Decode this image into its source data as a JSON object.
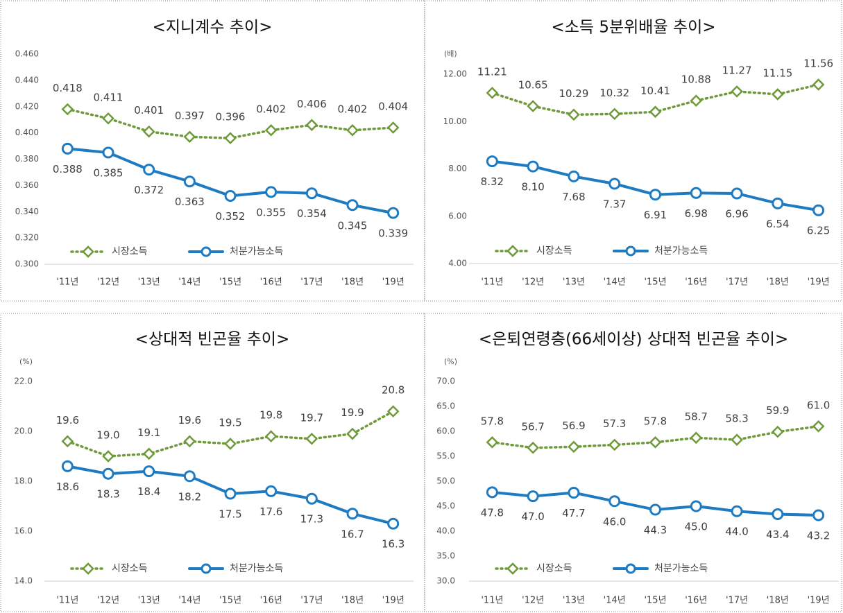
{
  "chart_data": [
    {
      "type": "line",
      "title": "<지니계수 추이>",
      "categories": [
        "'11년",
        "'12년",
        "'13년",
        "'14년",
        "'15년",
        "'16년",
        "'17년",
        "'18년",
        "'19년"
      ],
      "ylim": [
        0.3,
        0.46
      ],
      "yticks": [
        {
          "value": 0.3,
          "label": "0.300"
        },
        {
          "value": 0.32,
          "label": "0.320"
        },
        {
          "value": 0.34,
          "label": "0.340"
        },
        {
          "value": 0.36,
          "label": "0.360"
        },
        {
          "value": 0.38,
          "label": "0.380"
        },
        {
          "value": 0.4,
          "label": "0.400"
        },
        {
          "value": 0.42,
          "label": "0.420"
        },
        {
          "value": 0.44,
          "label": "0.440"
        },
        {
          "value": 0.46,
          "label": "0.460"
        }
      ],
      "grid": false,
      "series": [
        {
          "name": "시장소득",
          "color": "#6f9a3a",
          "values": [
            0.418,
            0.411,
            0.401,
            0.397,
            0.396,
            0.402,
            0.406,
            0.402,
            0.404
          ],
          "value_labels": [
            "0.418",
            "0.411",
            "0.401",
            "0.397",
            "0.396",
            "0.402",
            "0.406",
            "0.402",
            "0.404"
          ]
        },
        {
          "name": "처분가능소득",
          "color": "#1f7bc1",
          "values": [
            0.388,
            0.385,
            0.372,
            0.363,
            0.352,
            0.355,
            0.354,
            0.345,
            0.339
          ],
          "value_labels": [
            "0.388",
            "0.385",
            "0.372",
            "0.363",
            "0.352",
            "0.355",
            "0.354",
            "0.345",
            "0.339"
          ]
        }
      ]
    },
    {
      "type": "line",
      "title": "<소득 5분위배율 추이>",
      "unit": "(배)",
      "categories": [
        "'11년",
        "'12년",
        "'13년",
        "'14년",
        "'15년",
        "'16년",
        "'17년",
        "'18년",
        "'19년"
      ],
      "ylim": [
        4,
        12
      ],
      "yticks": [
        {
          "value": 4,
          "label": "4.00"
        },
        {
          "value": 6,
          "label": "6.00"
        },
        {
          "value": 8,
          "label": "8.00"
        },
        {
          "value": 10,
          "label": "10.00"
        },
        {
          "value": 12,
          "label": "12.00"
        }
      ],
      "grid": false,
      "series": [
        {
          "name": "시장소득",
          "color": "#6f9a3a",
          "values": [
            11.21,
            10.65,
            10.29,
            10.32,
            10.41,
            10.88,
            11.27,
            11.15,
            11.56
          ],
          "value_labels": [
            "11.21",
            "10.65",
            "10.29",
            "10.32",
            "10.41",
            "10.88",
            "11.27",
            "11.15",
            "11.56"
          ]
        },
        {
          "name": "처분가능소득",
          "color": "#1f7bc1",
          "values": [
            8.32,
            8.1,
            7.68,
            7.37,
            6.91,
            6.98,
            6.96,
            6.54,
            6.25
          ],
          "value_labels": [
            "8.32",
            "8.10",
            "7.68",
            "7.37",
            "6.91",
            "6.98",
            "6.96",
            "6.54",
            "6.25"
          ]
        }
      ]
    },
    {
      "type": "line",
      "title": "<상대적 빈곤율 추이>",
      "unit": "(%)",
      "categories": [
        "'11년",
        "'12년",
        "'13년",
        "'14년",
        "'15년",
        "'16년",
        "'17년",
        "'18년",
        "'19년"
      ],
      "ylim": [
        14,
        22
      ],
      "yticks": [
        {
          "value": 14,
          "label": "14.0"
        },
        {
          "value": 16,
          "label": "16.0"
        },
        {
          "value": 18,
          "label": "18.0"
        },
        {
          "value": 20,
          "label": "20.0"
        },
        {
          "value": 22,
          "label": "22.0"
        }
      ],
      "grid": false,
      "series": [
        {
          "name": "시장소득",
          "color": "#6f9a3a",
          "values": [
            19.6,
            19.0,
            19.1,
            19.6,
            19.5,
            19.8,
            19.7,
            19.9,
            20.8
          ],
          "value_labels": [
            "19.6",
            "19.0",
            "19.1",
            "19.6",
            "19.5",
            "19.8",
            "19.7",
            "19.9",
            "20.8"
          ]
        },
        {
          "name": "처분가능소득",
          "color": "#1f7bc1",
          "values": [
            18.6,
            18.3,
            18.4,
            18.2,
            17.5,
            17.6,
            17.3,
            16.7,
            16.3
          ],
          "value_labels": [
            "18.6",
            "18.3",
            "18.4",
            "18.2",
            "17.5",
            "17.6",
            "17.3",
            "16.7",
            "16.3"
          ]
        }
      ]
    },
    {
      "type": "line",
      "title": "<은퇴연령층(66세이상) 상대적 빈곤율 추이>",
      "unit": "(%)",
      "categories": [
        "'11년",
        "'12년",
        "'13년",
        "'14년",
        "'15년",
        "'16년",
        "'17년",
        "'18년",
        "'19년"
      ],
      "ylim": [
        30,
        70
      ],
      "yticks": [
        {
          "value": 30,
          "label": "30.0"
        },
        {
          "value": 35,
          "label": "35.0"
        },
        {
          "value": 40,
          "label": "40.0"
        },
        {
          "value": 45,
          "label": "45.0"
        },
        {
          "value": 50,
          "label": "50.0"
        },
        {
          "value": 55,
          "label": "55.0"
        },
        {
          "value": 60,
          "label": "60.0"
        },
        {
          "value": 65,
          "label": "65.0"
        },
        {
          "value": 70,
          "label": "70.0"
        }
      ],
      "grid": false,
      "series": [
        {
          "name": "시장소득",
          "color": "#6f9a3a",
          "values": [
            57.8,
            56.7,
            56.9,
            57.3,
            57.8,
            58.7,
            58.3,
            59.9,
            61.0
          ],
          "value_labels": [
            "57.8",
            "56.7",
            "56.9",
            "57.3",
            "57.8",
            "58.7",
            "58.3",
            "59.9",
            "61.0"
          ]
        },
        {
          "name": "처분가능소득",
          "color": "#1f7bc1",
          "values": [
            47.8,
            47.0,
            47.7,
            46.0,
            44.3,
            45.0,
            44.0,
            43.4,
            43.2
          ],
          "value_labels": [
            "47.8",
            "47.0",
            "47.7",
            "46.0",
            "44.3",
            "45.0",
            "44.0",
            "43.4",
            "43.2"
          ]
        }
      ]
    }
  ]
}
